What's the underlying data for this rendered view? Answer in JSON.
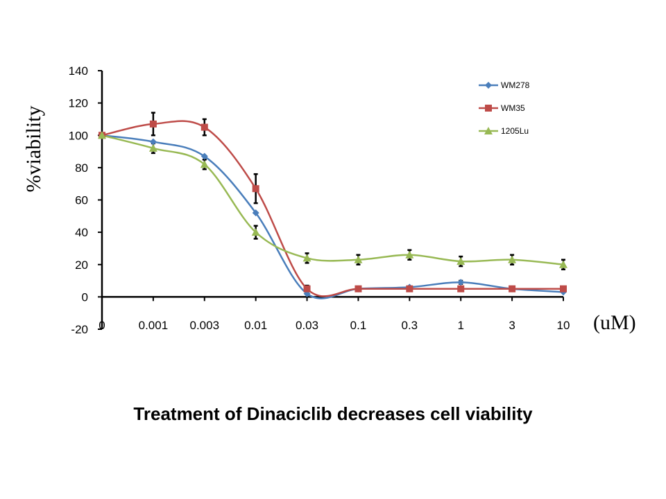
{
  "caption": "Treatment of Dinaciclib decreases cell viability",
  "chart_data": {
    "type": "line",
    "title": "",
    "xlabel": "(uM)",
    "ylabel": "%viability",
    "categories": [
      "0",
      "0.001",
      "0.003",
      "0.01",
      "0.03",
      "0.1",
      "0.3",
      "1",
      "3",
      "10"
    ],
    "ylim": [
      -20,
      140
    ],
    "yticks": [
      -20,
      0,
      20,
      40,
      60,
      80,
      100,
      120,
      140
    ],
    "grid": false,
    "legend_position": "top-right",
    "series": [
      {
        "name": "WM278",
        "color": "#4a7ebb",
        "marker": "diamond",
        "values": [
          100,
          96,
          87,
          52,
          2,
          5,
          6,
          9,
          5,
          3
        ],
        "errors": [
          0,
          0,
          0,
          0,
          0,
          0,
          0,
          1,
          0,
          0
        ]
      },
      {
        "name": "WM35",
        "color": "#be4b48",
        "marker": "square",
        "values": [
          100,
          107,
          105,
          67,
          5,
          5,
          5,
          5,
          5,
          5
        ],
        "errors": [
          0,
          7,
          5,
          9,
          2,
          1,
          1,
          1,
          1,
          1
        ]
      },
      {
        "name": "1205Lu",
        "color": "#98b954",
        "marker": "triangle",
        "values": [
          100,
          92,
          82,
          40,
          24,
          23,
          26,
          22,
          23,
          20
        ],
        "errors": [
          0,
          3,
          3,
          4,
          3,
          3,
          3,
          3,
          3,
          3
        ]
      }
    ]
  }
}
